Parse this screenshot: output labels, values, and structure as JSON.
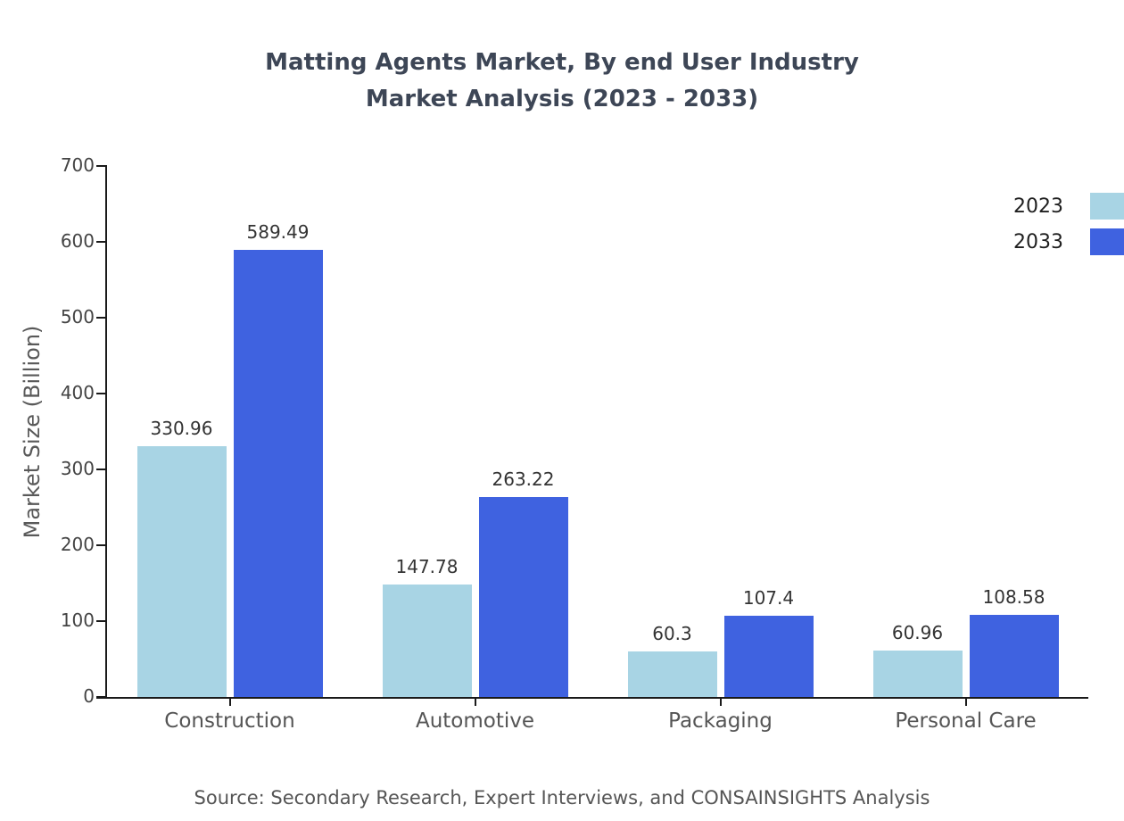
{
  "title": {
    "line1": "Matting Agents Market, By end User Industry",
    "line2": "Market Analysis (2023 - 2033)"
  },
  "source": "Source: Secondary Research, Expert Interviews, and CONSAINSIGHTS Analysis",
  "chart_data": {
    "type": "bar",
    "title": "Matting Agents Market, By end User Industry — Market Analysis (2023 - 2033)",
    "categories": [
      "Construction",
      "Automotive",
      "Packaging",
      "Personal Care"
    ],
    "series": [
      {
        "name": "2023",
        "color": "#a8d4e4",
        "values": [
          330.96,
          147.78,
          60.3,
          60.96
        ]
      },
      {
        "name": "2033",
        "color": "#3f62e0",
        "values": [
          589.49,
          263.22,
          107.4,
          108.58
        ]
      }
    ],
    "xlabel": "",
    "ylabel": "Market Size (Billion)",
    "ylim": [
      0,
      700
    ],
    "yticks": [
      0,
      100,
      200,
      300,
      400,
      500,
      600,
      700
    ],
    "grid": false,
    "legend_position": "top-right"
  }
}
